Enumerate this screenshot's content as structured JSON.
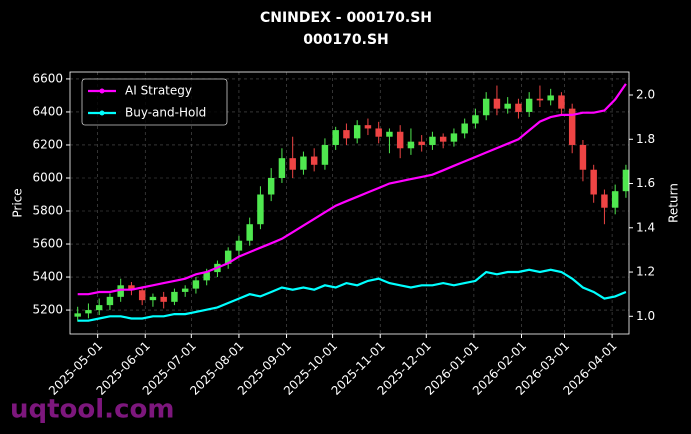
{
  "chart_data": {
    "type": "candlestick",
    "title": "CNINDEX - 000170.SH",
    "subtitle": "000170.SH",
    "ylabel": "Price",
    "y2label": "Return",
    "watermark": "uqtool.com",
    "x": [
      "2025-04-18",
      "2025-04-25",
      "2025-05-02",
      "2025-05-09",
      "2025-05-16",
      "2025-05-23",
      "2025-05-30",
      "2025-06-06",
      "2025-06-13",
      "2025-06-20",
      "2025-06-27",
      "2025-07-04",
      "2025-07-11",
      "2025-07-18",
      "2025-07-25",
      "2025-08-01",
      "2025-08-08",
      "2025-08-15",
      "2025-08-22",
      "2025-08-29",
      "2025-09-05",
      "2025-09-12",
      "2025-09-19",
      "2025-09-26",
      "2025-10-03",
      "2025-10-10",
      "2025-10-17",
      "2025-10-24",
      "2025-10-31",
      "2025-11-07",
      "2025-11-14",
      "2025-11-21",
      "2025-11-28",
      "2025-12-05",
      "2025-12-12",
      "2025-12-19",
      "2025-12-26",
      "2026-01-02",
      "2026-01-09",
      "2026-01-16",
      "2026-01-23",
      "2026-01-30",
      "2026-02-06",
      "2026-02-13",
      "2026-02-20",
      "2026-02-27",
      "2026-03-06",
      "2026-03-13",
      "2026-03-20",
      "2026-03-27",
      "2026-04-03",
      "2026-04-10"
    ],
    "open": [
      5160,
      5180,
      5200,
      5230,
      5280,
      5350,
      5320,
      5260,
      5280,
      5250,
      5310,
      5330,
      5380,
      5430,
      5480,
      5560,
      5620,
      5720,
      5900,
      6000,
      6120,
      6050,
      6130,
      6080,
      6200,
      6290,
      6240,
      6320,
      6300,
      6250,
      6280,
      6180,
      6220,
      6200,
      6250,
      6220,
      6270,
      6330,
      6380,
      6480,
      6420,
      6450,
      6400,
      6480,
      6470,
      6500,
      6420,
      6200,
      6050,
      5900,
      5820,
      5920
    ],
    "high": [
      5220,
      5240,
      5270,
      5300,
      5390,
      5370,
      5340,
      5300,
      5310,
      5330,
      5350,
      5400,
      5450,
      5500,
      5580,
      5650,
      5760,
      5950,
      6060,
      6180,
      6250,
      6160,
      6180,
      6240,
      6310,
      6330,
      6350,
      6360,
      6340,
      6300,
      6320,
      6300,
      6260,
      6280,
      6270,
      6300,
      6360,
      6420,
      6520,
      6560,
      6490,
      6480,
      6520,
      6560,
      6540,
      6520,
      6450,
      6230,
      6080,
      5930,
      5960,
      6080
    ],
    "low": [
      5130,
      5150,
      5170,
      5200,
      5250,
      5290,
      5230,
      5220,
      5210,
      5230,
      5280,
      5300,
      5350,
      5400,
      5450,
      5530,
      5590,
      5690,
      5860,
      5970,
      6000,
      6020,
      6040,
      6050,
      6170,
      6200,
      6210,
      6260,
      6210,
      6150,
      6120,
      6140,
      6160,
      6170,
      6180,
      6190,
      6240,
      6300,
      6350,
      6380,
      6390,
      6360,
      6370,
      6430,
      6440,
      6380,
      6150,
      5980,
      5850,
      5720,
      5780,
      5880
    ],
    "close": [
      5180,
      5200,
      5230,
      5280,
      5350,
      5320,
      5260,
      5280,
      5250,
      5310,
      5330,
      5380,
      5430,
      5480,
      5560,
      5620,
      5720,
      5900,
      6000,
      6120,
      6050,
      6130,
      6080,
      6200,
      6290,
      6240,
      6320,
      6300,
      6250,
      6280,
      6180,
      6220,
      6200,
      6250,
      6220,
      6270,
      6330,
      6380,
      6480,
      6420,
      6450,
      6400,
      6480,
      6470,
      6500,
      6420,
      6200,
      6050,
      5900,
      5820,
      5920,
      6050
    ],
    "up_color": "#4fe84f",
    "down_color": "#ee4444",
    "series": [
      {
        "name": "AI Strategy",
        "color": "#ff00ff",
        "axis": "y2",
        "values": [
          1.1,
          1.1,
          1.11,
          1.11,
          1.12,
          1.12,
          1.13,
          1.14,
          1.15,
          1.16,
          1.17,
          1.19,
          1.2,
          1.22,
          1.24,
          1.27,
          1.29,
          1.31,
          1.33,
          1.35,
          1.38,
          1.41,
          1.44,
          1.47,
          1.5,
          1.52,
          1.54,
          1.56,
          1.58,
          1.6,
          1.61,
          1.62,
          1.63,
          1.64,
          1.66,
          1.68,
          1.7,
          1.72,
          1.74,
          1.76,
          1.78,
          1.8,
          1.84,
          1.88,
          1.9,
          1.91,
          1.91,
          1.92,
          1.92,
          1.93,
          1.98,
          2.05
        ]
      },
      {
        "name": "Buy-and-Hold",
        "color": "#00ffff",
        "axis": "y2",
        "values": [
          0.98,
          0.98,
          0.99,
          1.0,
          1.0,
          0.99,
          0.99,
          1.0,
          1.0,
          1.01,
          1.01,
          1.02,
          1.03,
          1.04,
          1.06,
          1.08,
          1.1,
          1.09,
          1.11,
          1.13,
          1.12,
          1.13,
          1.12,
          1.14,
          1.13,
          1.15,
          1.14,
          1.16,
          1.17,
          1.15,
          1.14,
          1.13,
          1.14,
          1.14,
          1.15,
          1.14,
          1.15,
          1.16,
          1.2,
          1.19,
          1.2,
          1.2,
          1.21,
          1.2,
          1.21,
          1.2,
          1.17,
          1.13,
          1.11,
          1.08,
          1.09,
          1.11
        ]
      }
    ],
    "xlim": [
      "2025-04-13",
      "2026-04-12"
    ],
    "xticks": [
      "2025-05-01",
      "2025-06-01",
      "2025-07-01",
      "2025-08-01",
      "2025-09-01",
      "2025-10-01",
      "2025-11-01",
      "2025-12-01",
      "2026-01-01",
      "2026-02-01",
      "2026-03-01",
      "2026-04-01"
    ],
    "ylim": [
      5055,
      6642
    ],
    "yticks": [
      5200,
      5400,
      5600,
      5800,
      6000,
      6200,
      6400,
      6600
    ],
    "y2lim": [
      0.92,
      2.104
    ],
    "y2ticks": [
      {
        "value": 1,
        "label": "1.0"
      },
      1.2,
      1.4,
      1.6,
      1.8,
      {
        "value": 2,
        "label": "2.0"
      }
    ],
    "grid": true,
    "legend": "upper left"
  }
}
